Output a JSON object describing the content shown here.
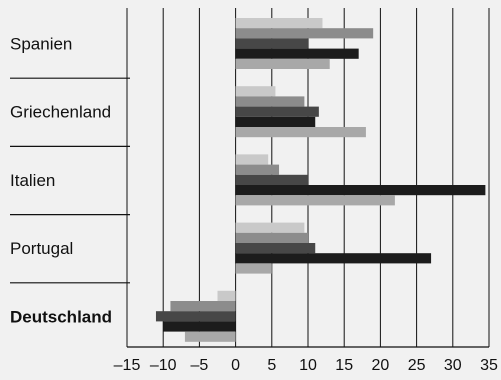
{
  "chart_data": {
    "type": "bar",
    "orientation": "horizontal",
    "categories": [
      "Spanien",
      "Griechenland",
      "Italien",
      "Portugal",
      "Deutschland"
    ],
    "highlight_category": "Deutschland",
    "series_colors": [
      "#c9c9c9",
      "#8c8c8c",
      "#474747",
      "#1c1c1c",
      "#a8a8a8"
    ],
    "series": [
      {
        "values": [
          12,
          5.5,
          4.5,
          9.5,
          -2.5
        ]
      },
      {
        "values": [
          19,
          9.5,
          6,
          10,
          -9
        ]
      },
      {
        "values": [
          10,
          11.5,
          10,
          11,
          -11
        ]
      },
      {
        "values": [
          17,
          11,
          34.5,
          27,
          -10
        ]
      },
      {
        "values": [
          13,
          18,
          22,
          5,
          -7
        ]
      }
    ],
    "xlim": [
      -15,
      35
    ],
    "xticks": [
      -15,
      -10,
      -5,
      0,
      5,
      10,
      15,
      20,
      25,
      30,
      35
    ],
    "xtick_labels": [
      "–15",
      "–10",
      "–5",
      "0",
      "5",
      "10",
      "15",
      "20",
      "25",
      "30",
      "35"
    ],
    "grid": "vertical",
    "legend": "none"
  }
}
